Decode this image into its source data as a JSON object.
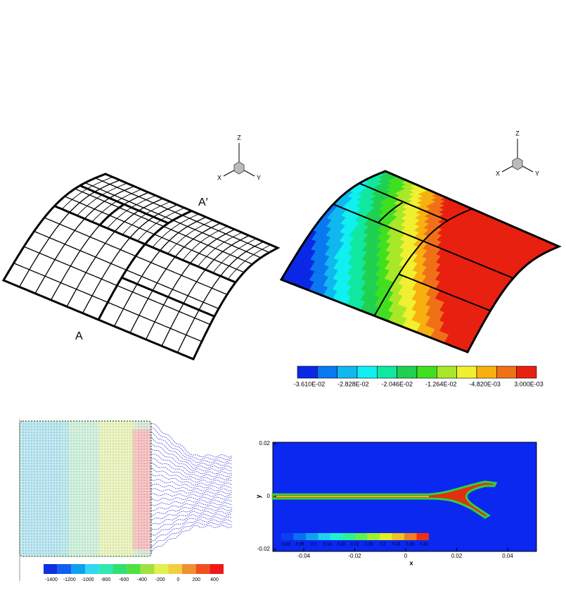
{
  "mesh_panel": {
    "axes": {
      "z": "Z",
      "x": "X",
      "y": "Y"
    },
    "section_end": "A′",
    "section_start": "A"
  },
  "contour_panel": {
    "axes": {
      "z": "Z",
      "x": "X",
      "y": "Y"
    },
    "colorbar_labels": [
      "-3.610E-02",
      "-2.828E-02",
      "-2.046E-02",
      "-1.264E-02",
      "-4.820E-03",
      "3.000E-03"
    ]
  },
  "vector_panel": {
    "colorbar_labels": [
      "-1400",
      "-1200",
      "-1000",
      "-800",
      "-600",
      "-400",
      "-200",
      "0",
      "200",
      "400"
    ]
  },
  "crack_panel": {
    "y_label": "y",
    "x_label": "x",
    "y_ticks": [
      "0.02",
      "0",
      "-0.02"
    ],
    "x_ticks": [
      "-0.04",
      "-0.02",
      "0",
      "0.02",
      "0.04"
    ],
    "colorbar_labels": [
      "0.02",
      "0.06",
      "0.1",
      "0.14",
      "0.18",
      "0.22",
      "0.26",
      "0.3",
      "0.34",
      "0.38",
      "0.42"
    ]
  }
}
